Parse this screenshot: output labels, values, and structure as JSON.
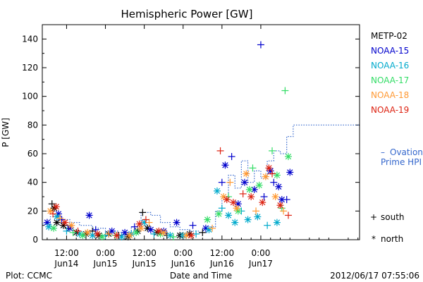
{
  "chart_data": {
    "type": "scatter",
    "title": "Hemispheric Power [GW]",
    "ylabel": "P [GW]",
    "xlabel": "Date and Time",
    "ylim": [
      0,
      150
    ],
    "yticks": [
      0,
      20,
      40,
      60,
      80,
      100,
      120,
      140
    ],
    "x_unit": "hours since 2012-06-13 00:00 UT",
    "xlim": [
      4.5,
      102.5
    ],
    "xticks": [
      {
        "x": 12,
        "time": "12:00",
        "date": "Jun14"
      },
      {
        "x": 24,
        "time": "0:00",
        "date": "Jun15"
      },
      {
        "x": 36,
        "time": "12:00",
        "date": "Jun15"
      },
      {
        "x": 48,
        "time": "0:00",
        "date": "Jun16"
      },
      {
        "x": 60,
        "time": "12:00",
        "date": "Jun16"
      },
      {
        "x": 72,
        "time": "0:00",
        "date": "Jun17"
      }
    ],
    "marker_legend": [
      {
        "marker": "+",
        "label": "south"
      },
      {
        "marker": "*",
        "label": "north"
      }
    ],
    "series": [
      {
        "name": "METP-02",
        "color": "#000000",
        "points": [
          {
            "x": 7.5,
            "y": 25,
            "m": "+"
          },
          {
            "x": 8.2,
            "y": 22,
            "m": "*"
          },
          {
            "x": 9,
            "y": 12,
            "m": "*"
          },
          {
            "x": 11,
            "y": 10,
            "m": "*"
          },
          {
            "x": 12.5,
            "y": 8,
            "m": "+"
          },
          {
            "x": 15,
            "y": 5,
            "m": "*"
          },
          {
            "x": 18,
            "y": 4,
            "m": "*"
          },
          {
            "x": 20,
            "y": 6,
            "m": "+"
          },
          {
            "x": 22,
            "y": 3,
            "m": "*"
          },
          {
            "x": 25,
            "y": 4,
            "m": "*"
          },
          {
            "x": 28,
            "y": 3,
            "m": "+"
          },
          {
            "x": 31,
            "y": 2,
            "m": "*"
          },
          {
            "x": 34,
            "y": 6,
            "m": "*"
          },
          {
            "x": 35.5,
            "y": 19,
            "m": "+"
          },
          {
            "x": 37,
            "y": 8,
            "m": "*"
          },
          {
            "x": 40,
            "y": 5,
            "m": "*"
          },
          {
            "x": 43,
            "y": 3,
            "m": "+"
          },
          {
            "x": 47,
            "y": 3,
            "m": "*"
          },
          {
            "x": 50,
            "y": 4,
            "m": "*"
          },
          {
            "x": 54,
            "y": 5,
            "m": "+"
          }
        ]
      },
      {
        "name": "NOAA-15",
        "color": "#0000cc",
        "points": [
          {
            "x": 6,
            "y": 12,
            "m": "*"
          },
          {
            "x": 9.5,
            "y": 18,
            "m": "*"
          },
          {
            "x": 10.5,
            "y": 14,
            "m": "+"
          },
          {
            "x": 13,
            "y": 8,
            "m": "*"
          },
          {
            "x": 19,
            "y": 17,
            "m": "*"
          },
          {
            "x": 21,
            "y": 7,
            "m": "+"
          },
          {
            "x": 26,
            "y": 6,
            "m": "*"
          },
          {
            "x": 30,
            "y": 5,
            "m": "*"
          },
          {
            "x": 33,
            "y": 9,
            "m": "+"
          },
          {
            "x": 38,
            "y": 7,
            "m": "*"
          },
          {
            "x": 42,
            "y": 6,
            "m": "*"
          },
          {
            "x": 46,
            "y": 12,
            "m": "*"
          },
          {
            "x": 51,
            "y": 10,
            "m": "+"
          },
          {
            "x": 55,
            "y": 8,
            "m": "*"
          },
          {
            "x": 60,
            "y": 40,
            "m": "+"
          },
          {
            "x": 61,
            "y": 52,
            "m": "*"
          },
          {
            "x": 63,
            "y": 58,
            "m": "+"
          },
          {
            "x": 65,
            "y": 25,
            "m": "*"
          },
          {
            "x": 67,
            "y": 40,
            "m": "*"
          },
          {
            "x": 70,
            "y": 35,
            "m": "*"
          },
          {
            "x": 72,
            "y": 136,
            "m": "+"
          },
          {
            "x": 73,
            "y": 30,
            "m": "+"
          },
          {
            "x": 75,
            "y": 48,
            "m": "*"
          },
          {
            "x": 76,
            "y": 40,
            "m": "+"
          },
          {
            "x": 77.5,
            "y": 37,
            "m": "*"
          },
          {
            "x": 78.5,
            "y": 28,
            "m": "*"
          },
          {
            "x": 80,
            "y": 28,
            "m": "+"
          },
          {
            "x": 81,
            "y": 47,
            "m": "*"
          }
        ]
      },
      {
        "name": "NOAA-16",
        "color": "#00aacc",
        "points": [
          {
            "x": 6.5,
            "y": 9,
            "m": "*"
          },
          {
            "x": 9,
            "y": 16,
            "m": "*"
          },
          {
            "x": 12,
            "y": 6,
            "m": "+"
          },
          {
            "x": 16,
            "y": 4,
            "m": "*"
          },
          {
            "x": 20,
            "y": 3,
            "m": "*"
          },
          {
            "x": 24,
            "y": 3,
            "m": "+"
          },
          {
            "x": 29,
            "y": 2,
            "m": "*"
          },
          {
            "x": 32,
            "y": 4,
            "m": "*"
          },
          {
            "x": 36,
            "y": 12,
            "m": "*"
          },
          {
            "x": 39,
            "y": 4,
            "m": "+"
          },
          {
            "x": 44,
            "y": 3,
            "m": "*"
          },
          {
            "x": 48,
            "y": 3,
            "m": "*"
          },
          {
            "x": 52,
            "y": 4,
            "m": "+"
          },
          {
            "x": 56,
            "y": 7,
            "m": "*"
          },
          {
            "x": 58.5,
            "y": 34,
            "m": "*"
          },
          {
            "x": 60,
            "y": 22,
            "m": "+"
          },
          {
            "x": 62,
            "y": 17,
            "m": "*"
          },
          {
            "x": 64,
            "y": 12,
            "m": "*"
          },
          {
            "x": 66,
            "y": 20,
            "m": "+"
          },
          {
            "x": 68,
            "y": 14,
            "m": "*"
          },
          {
            "x": 71,
            "y": 16,
            "m": "*"
          },
          {
            "x": 74,
            "y": 10,
            "m": "+"
          },
          {
            "x": 77,
            "y": 12,
            "m": "*"
          }
        ]
      },
      {
        "name": "NOAA-17",
        "color": "#33dd66",
        "points": [
          {
            "x": 8,
            "y": 8,
            "m": "*"
          },
          {
            "x": 14,
            "y": 5,
            "m": "+"
          },
          {
            "x": 17,
            "y": 3,
            "m": "*"
          },
          {
            "x": 23,
            "y": 2,
            "m": "*"
          },
          {
            "x": 27,
            "y": 3,
            "m": "+"
          },
          {
            "x": 33.5,
            "y": 5,
            "m": "*"
          },
          {
            "x": 41,
            "y": 4,
            "m": "*"
          },
          {
            "x": 45,
            "y": 2,
            "m": "+"
          },
          {
            "x": 55.5,
            "y": 14,
            "m": "*"
          },
          {
            "x": 59,
            "y": 18,
            "m": "*"
          },
          {
            "x": 62,
            "y": 30,
            "m": "+"
          },
          {
            "x": 65,
            "y": 20,
            "m": "*"
          },
          {
            "x": 68.5,
            "y": 35,
            "m": "*"
          },
          {
            "x": 69.5,
            "y": 50,
            "m": "+"
          },
          {
            "x": 71.5,
            "y": 38,
            "m": "*"
          },
          {
            "x": 75.5,
            "y": 62,
            "m": "+"
          },
          {
            "x": 77,
            "y": 45,
            "m": "*"
          },
          {
            "x": 78.5,
            "y": 22,
            "m": "+"
          },
          {
            "x": 79.5,
            "y": 104,
            "m": "+"
          },
          {
            "x": 80.5,
            "y": 58,
            "m": "*"
          }
        ]
      },
      {
        "name": "NOAA-18",
        "color": "#ff9933",
        "points": [
          {
            "x": 7,
            "y": 20,
            "m": "*"
          },
          {
            "x": 10,
            "y": 15,
            "m": "+"
          },
          {
            "x": 13.5,
            "y": 10,
            "m": "*"
          },
          {
            "x": 18.5,
            "y": 5,
            "m": "*"
          },
          {
            "x": 25,
            "y": 4,
            "m": "+"
          },
          {
            "x": 31.5,
            "y": 3,
            "m": "*"
          },
          {
            "x": 35,
            "y": 8,
            "m": "*"
          },
          {
            "x": 37.5,
            "y": 12,
            "m": "+"
          },
          {
            "x": 42,
            "y": 5,
            "m": "*"
          },
          {
            "x": 49,
            "y": 3,
            "m": "*"
          },
          {
            "x": 57,
            "y": 8,
            "m": "+"
          },
          {
            "x": 60.5,
            "y": 30,
            "m": "*"
          },
          {
            "x": 62.5,
            "y": 40,
            "m": "+"
          },
          {
            "x": 64.5,
            "y": 22,
            "m": "*"
          },
          {
            "x": 67.5,
            "y": 46,
            "m": "*"
          },
          {
            "x": 70.5,
            "y": 20,
            "m": "+"
          },
          {
            "x": 73.5,
            "y": 44,
            "m": "*"
          },
          {
            "x": 76.5,
            "y": 30,
            "m": "*"
          },
          {
            "x": 79,
            "y": 20,
            "m": "+"
          }
        ]
      },
      {
        "name": "NOAA-19",
        "color": "#dd2211",
        "points": [
          {
            "x": 7.8,
            "y": 18,
            "m": "+"
          },
          {
            "x": 8.8,
            "y": 23,
            "m": "*"
          },
          {
            "x": 11.5,
            "y": 12,
            "m": "*"
          },
          {
            "x": 15.5,
            "y": 6,
            "m": "+"
          },
          {
            "x": 21.5,
            "y": 4,
            "m": "*"
          },
          {
            "x": 27.5,
            "y": 3,
            "m": "*"
          },
          {
            "x": 34.5,
            "y": 11,
            "m": "*"
          },
          {
            "x": 36.5,
            "y": 14,
            "m": "+"
          },
          {
            "x": 40.5,
            "y": 6,
            "m": "*"
          },
          {
            "x": 50.5,
            "y": 3,
            "m": "*"
          },
          {
            "x": 59.5,
            "y": 62,
            "m": "+"
          },
          {
            "x": 61.5,
            "y": 28,
            "m": "*"
          },
          {
            "x": 63.5,
            "y": 26,
            "m": "*"
          },
          {
            "x": 66.5,
            "y": 32,
            "m": "+"
          },
          {
            "x": 69,
            "y": 30,
            "m": "*"
          },
          {
            "x": 72.5,
            "y": 26,
            "m": "*"
          },
          {
            "x": 74.5,
            "y": 50,
            "m": "*"
          },
          {
            "x": 75.5,
            "y": 46,
            "m": "+"
          },
          {
            "x": 78,
            "y": 24,
            "m": "*"
          },
          {
            "x": 80.5,
            "y": 17,
            "m": "+"
          }
        ]
      }
    ],
    "hpi_line": {
      "name_line1": "Ovation",
      "name_line2": "Prime HPI",
      "marker_text": "–",
      "color": "#3366cc",
      "style": "dotted-step",
      "points": [
        [
          4.5,
          11
        ],
        [
          7,
          16
        ],
        [
          10,
          14
        ],
        [
          13,
          12
        ],
        [
          16,
          10
        ],
        [
          20,
          8
        ],
        [
          24,
          6
        ],
        [
          28,
          5
        ],
        [
          32,
          9
        ],
        [
          35,
          19
        ],
        [
          38,
          17
        ],
        [
          41,
          12
        ],
        [
          44,
          9
        ],
        [
          47,
          7
        ],
        [
          50,
          6
        ],
        [
          53,
          5
        ],
        [
          56,
          9
        ],
        [
          58,
          20
        ],
        [
          60,
          30
        ],
        [
          62,
          45
        ],
        [
          64,
          36
        ],
        [
          66,
          55
        ],
        [
          68,
          40
        ],
        [
          70,
          48
        ],
        [
          72,
          43
        ],
        [
          74,
          55
        ],
        [
          76,
          62
        ],
        [
          78,
          60
        ],
        [
          80,
          72
        ],
        [
          82,
          80
        ],
        [
          84,
          80
        ]
      ]
    },
    "grid": false,
    "legend": "right"
  },
  "footer": {
    "left": "Plot: CCMC",
    "right": "2012/06/17 07:55:06"
  }
}
